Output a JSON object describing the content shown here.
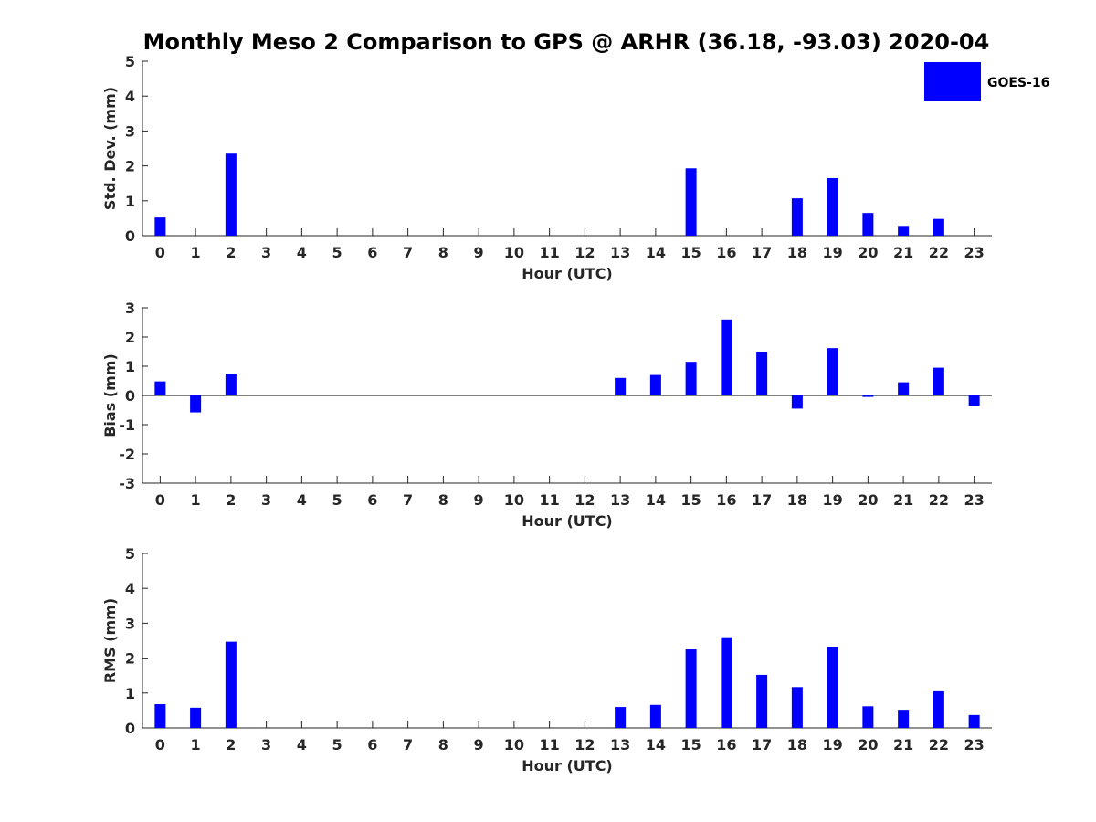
{
  "figure": {
    "title": "Monthly Meso 2 Comparison to GPS @ ARHR (36.18, -93.03) 2020-04",
    "legend": {
      "label": "GOES-16",
      "color": "#0000ff"
    }
  },
  "chart_data": [
    {
      "type": "bar",
      "name": "std-dev",
      "xlabel": "Hour (UTC)",
      "ylabel": "Std. Dev. (mm)",
      "ylim": [
        0,
        5
      ],
      "yticks": [
        0,
        1,
        2,
        3,
        4,
        5
      ],
      "categories": [
        "0",
        "1",
        "2",
        "3",
        "4",
        "5",
        "6",
        "7",
        "8",
        "9",
        "10",
        "11",
        "12",
        "13",
        "14",
        "15",
        "16",
        "17",
        "18",
        "19",
        "20",
        "21",
        "22",
        "23"
      ],
      "values": [
        0.52,
        null,
        2.35,
        null,
        null,
        null,
        null,
        null,
        null,
        null,
        null,
        null,
        null,
        null,
        null,
        1.93,
        null,
        null,
        1.07,
        1.65,
        0.65,
        0.28,
        0.48,
        null
      ],
      "color": "#0000ff",
      "legend": "top-right"
    },
    {
      "type": "bar",
      "name": "bias",
      "xlabel": "Hour (UTC)",
      "ylabel": "Bias (mm)",
      "ylim": [
        -3,
        3
      ],
      "yticks": [
        -3,
        -2,
        -1,
        0,
        1,
        2,
        3
      ],
      "categories": [
        "0",
        "1",
        "2",
        "3",
        "4",
        "5",
        "6",
        "7",
        "8",
        "9",
        "10",
        "11",
        "12",
        "13",
        "14",
        "15",
        "16",
        "17",
        "18",
        "19",
        "20",
        "21",
        "22",
        "23"
      ],
      "values": [
        0.48,
        -0.58,
        0.75,
        null,
        null,
        null,
        null,
        null,
        null,
        null,
        null,
        null,
        null,
        0.6,
        0.7,
        1.15,
        2.6,
        1.5,
        -0.45,
        1.62,
        -0.05,
        0.45,
        0.95,
        -0.35
      ],
      "color": "#0000ff"
    },
    {
      "type": "bar",
      "name": "rms",
      "xlabel": "Hour (UTC)",
      "ylabel": "RMS (mm)",
      "ylim": [
        0,
        5
      ],
      "yticks": [
        0,
        1,
        2,
        3,
        4,
        5
      ],
      "categories": [
        "0",
        "1",
        "2",
        "3",
        "4",
        "5",
        "6",
        "7",
        "8",
        "9",
        "10",
        "11",
        "12",
        "13",
        "14",
        "15",
        "16",
        "17",
        "18",
        "19",
        "20",
        "21",
        "22",
        "23"
      ],
      "values": [
        0.68,
        0.58,
        2.47,
        null,
        null,
        null,
        null,
        null,
        null,
        null,
        null,
        null,
        null,
        0.6,
        0.66,
        2.25,
        2.6,
        1.52,
        1.17,
        2.33,
        0.62,
        0.52,
        1.05,
        0.37
      ],
      "color": "#0000ff"
    }
  ]
}
